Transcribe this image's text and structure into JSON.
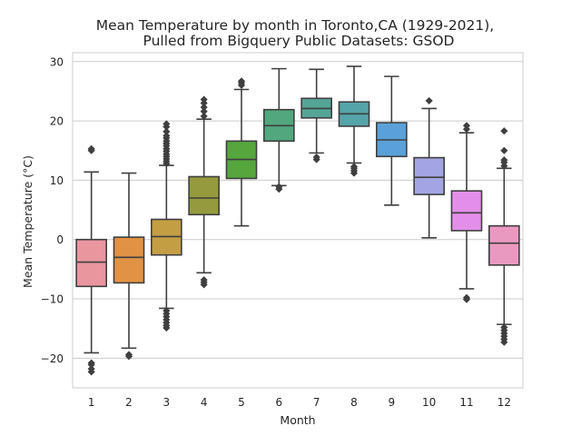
{
  "chart_data": {
    "type": "box",
    "title": "Mean Temperature by month in Toronto,CA (1929-2021),",
    "subtitle": "Pulled from Bigquery Public Datasets: GSOD",
    "xlabel": "Month",
    "ylabel": "Mean Temperature ($^\\circ$C)",
    "ylabel_display": "Mean Temperature (°C)",
    "ylim": [
      -25,
      31.5
    ],
    "yticks": [
      -20,
      -10,
      0,
      10,
      20,
      30
    ],
    "ytick_labels": [
      "−20",
      "−10",
      "0",
      "10",
      "20",
      "30"
    ],
    "grid": true,
    "categories": [
      "1",
      "2",
      "3",
      "4",
      "5",
      "6",
      "7",
      "8",
      "9",
      "10",
      "11",
      "12"
    ],
    "boxes": [
      {
        "month": "1",
        "whisker_low": -19.1,
        "q1": -7.9,
        "median": -3.8,
        "q3": 0.0,
        "whisker_high": 11.4,
        "outliers": [
          15.0,
          15.3,
          -20.8,
          -21.1,
          -21.8,
          -22.3
        ],
        "color": "#e9969f"
      },
      {
        "month": "2",
        "whisker_low": -18.3,
        "q1": -7.3,
        "median": -3.0,
        "q3": 0.4,
        "whisker_high": 11.2,
        "outliers": [
          -19.4,
          -19.7
        ],
        "color": "#e29244"
      },
      {
        "month": "3",
        "whisker_low": -11.6,
        "q1": -2.6,
        "median": 0.5,
        "q3": 3.4,
        "whisker_high": 12.5,
        "outliers": [
          12.8,
          13.2,
          13.6,
          14.0,
          14.4,
          14.9,
          15.3,
          15.8,
          16.2,
          16.6,
          17.1,
          17.5,
          18.2,
          19.0,
          19.5,
          -12.0,
          -12.5,
          -13.0,
          -13.5,
          -14.0,
          -14.5,
          -14.9
        ],
        "color": "#c49e43"
      },
      {
        "month": "4",
        "whisker_low": -5.6,
        "q1": 4.2,
        "median": 7.0,
        "q3": 10.6,
        "whisker_high": 20.3,
        "outliers": [
          20.8,
          21.6,
          22.3,
          23.0,
          23.6,
          -6.8,
          -7.2,
          -7.6
        ],
        "color": "#949a3d"
      },
      {
        "month": "5",
        "whisker_low": 2.3,
        "q1": 10.3,
        "median": 13.5,
        "q3": 16.6,
        "whisker_high": 25.3,
        "outliers": [
          26.0,
          26.4,
          26.7
        ],
        "color": "#54a63d"
      },
      {
        "month": "6",
        "whisker_low": 9.1,
        "q1": 16.6,
        "median": 19.2,
        "q3": 21.9,
        "whisker_high": 28.8,
        "outliers": [
          8.5,
          8.9
        ],
        "color": "#52a77e"
      },
      {
        "month": "7",
        "whisker_low": 14.6,
        "q1": 20.5,
        "median": 22.1,
        "q3": 23.8,
        "whisker_high": 28.7,
        "outliers": [
          13.5,
          13.9
        ],
        "color": "#55a596"
      },
      {
        "month": "8",
        "whisker_low": 12.9,
        "q1": 19.1,
        "median": 21.2,
        "q3": 23.2,
        "whisker_high": 29.2,
        "outliers": [
          11.2,
          11.6,
          12.0,
          12.3
        ],
        "color": "#55a4a9"
      },
      {
        "month": "9",
        "whisker_low": 5.8,
        "q1": 14.0,
        "median": 16.8,
        "q3": 19.7,
        "whisker_high": 27.5,
        "outliers": [],
        "color": "#5aa1d9"
      },
      {
        "month": "10",
        "whisker_low": 0.3,
        "q1": 7.6,
        "median": 10.5,
        "q3": 13.8,
        "whisker_high": 22.1,
        "outliers": [
          23.4
        ],
        "color": "#a2a5e1"
      },
      {
        "month": "11",
        "whisker_low": -8.3,
        "q1": 1.5,
        "median": 4.5,
        "q3": 8.2,
        "whisker_high": 18.0,
        "outliers": [
          18.6,
          19.2,
          -9.8,
          -10.1
        ],
        "color": "#e38fe9"
      },
      {
        "month": "12",
        "whisker_low": -14.3,
        "q1": -4.3,
        "median": -0.6,
        "q3": 2.3,
        "whisker_high": 12.0,
        "outliers": [
          12.4,
          13.0,
          13.4,
          15.0,
          18.3,
          -14.8,
          -15.3,
          -15.8,
          -16.3,
          -16.8,
          -17.3
        ],
        "color": "#e999c0"
      }
    ],
    "style": {
      "line_color": "#3f3f3f",
      "grid_color": "#cccccc",
      "spine_color": "#cccccc",
      "background": "#ffffff"
    }
  }
}
